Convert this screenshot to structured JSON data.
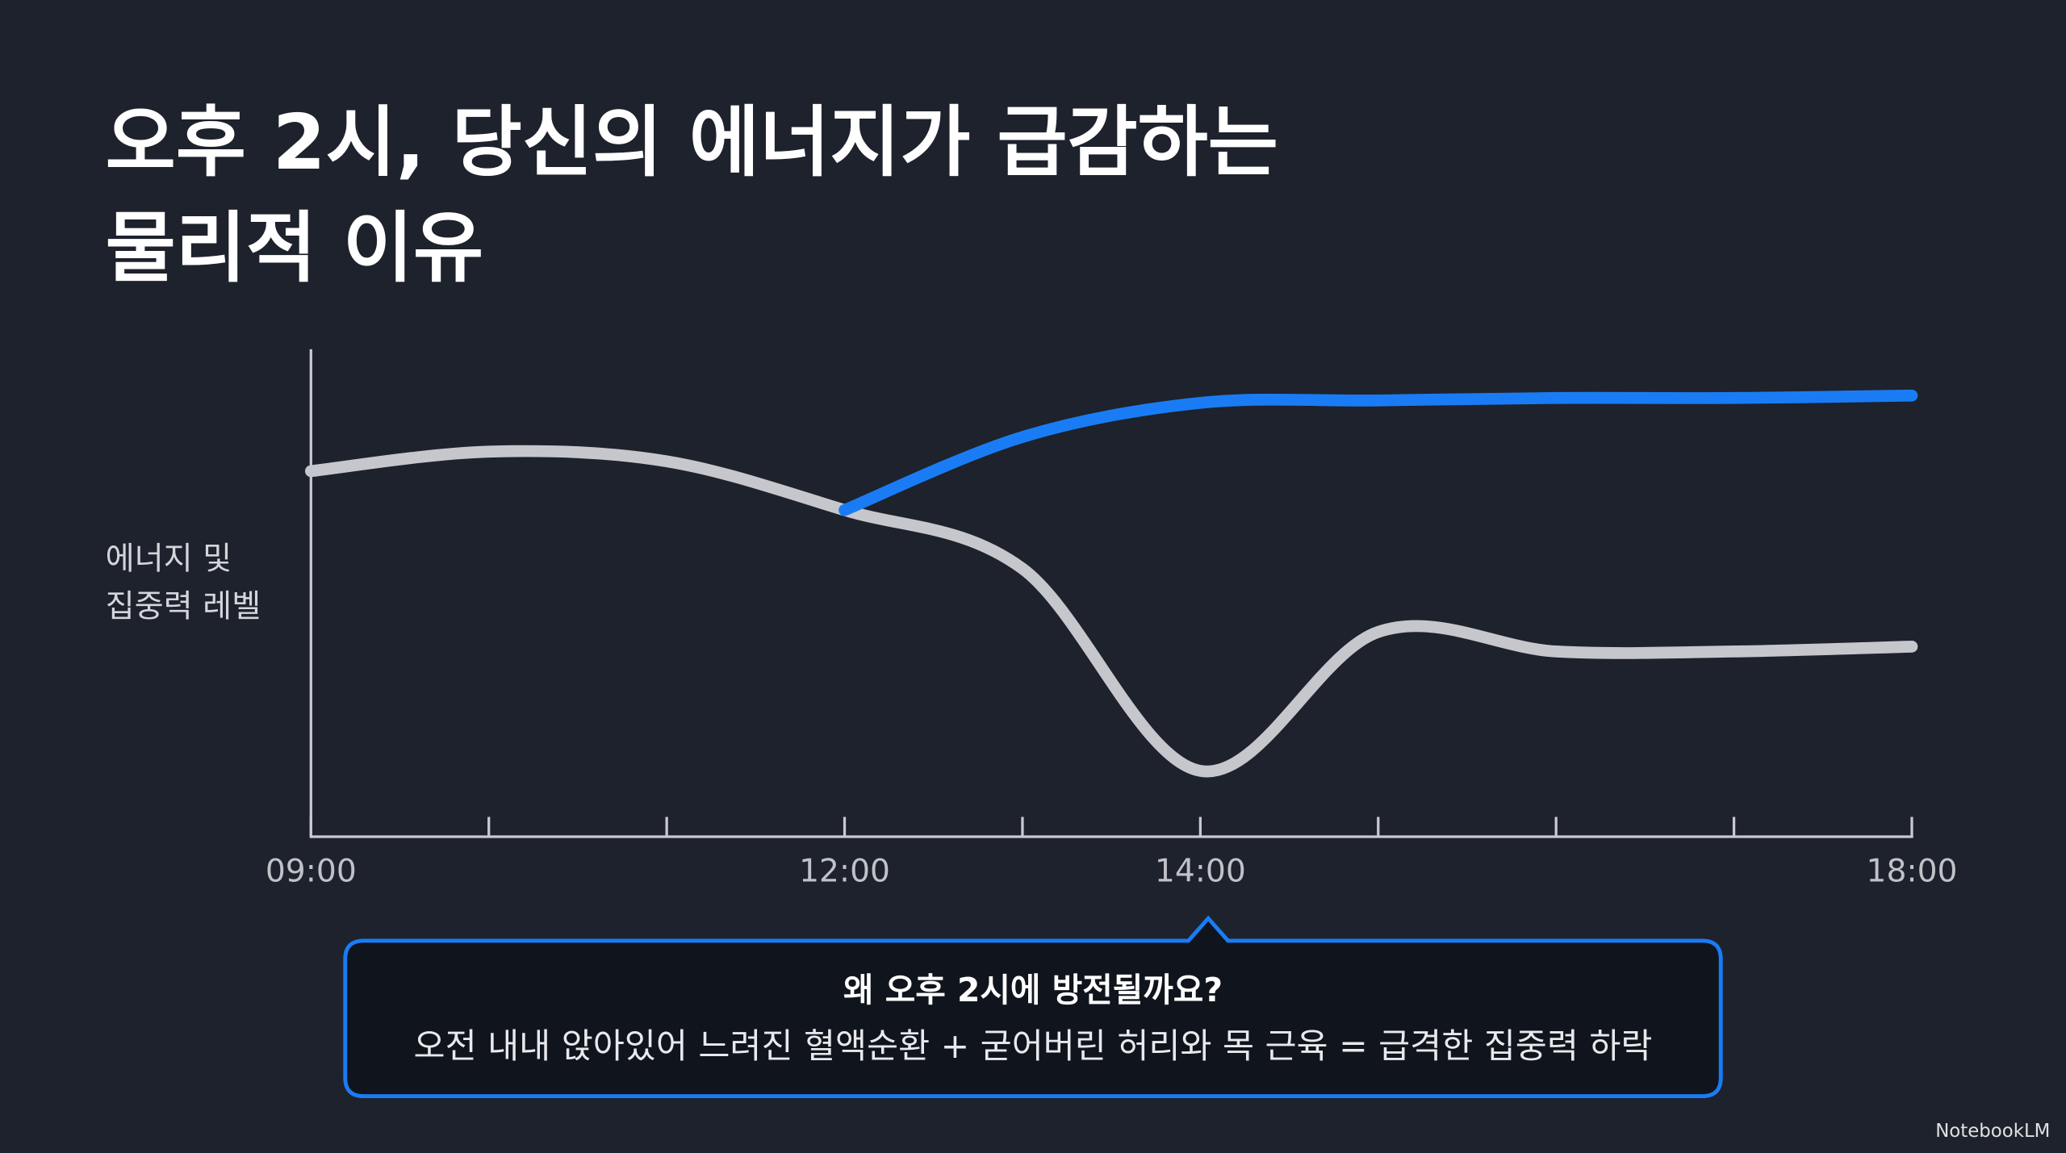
{
  "chart_data": {
    "type": "line",
    "title": [
      "오후 2시, 당신의 에너지가 급감하는",
      "물리적 이유"
    ],
    "ylabel": [
      "에너지 및",
      "집중력 레벨"
    ],
    "categories": [
      "09:00",
      null,
      null,
      "12:00",
      null,
      "14:00",
      null,
      null,
      null,
      "18:00"
    ],
    "ylim": [
      0,
      100
    ],
    "series": [
      {
        "color": "#1a7cf5",
        "values": [
          null,
          null,
          null,
          67,
          82,
          89,
          89.5,
          90,
          90,
          90.5
        ]
      },
      {
        "color": "#c6c7cc",
        "values": [
          75,
          79,
          77,
          67,
          55,
          13.5,
          42,
          38,
          38,
          39
        ]
      }
    ],
    "callout": {
      "title": "왜 오후 2시에 방전될까요?",
      "text": "오전 내내 앉아있어 느려진 혈액순환 + 굳어버린 허리와 목 근육 = 급격한 집중력 하락"
    },
    "watermark": "NotebookLM"
  }
}
